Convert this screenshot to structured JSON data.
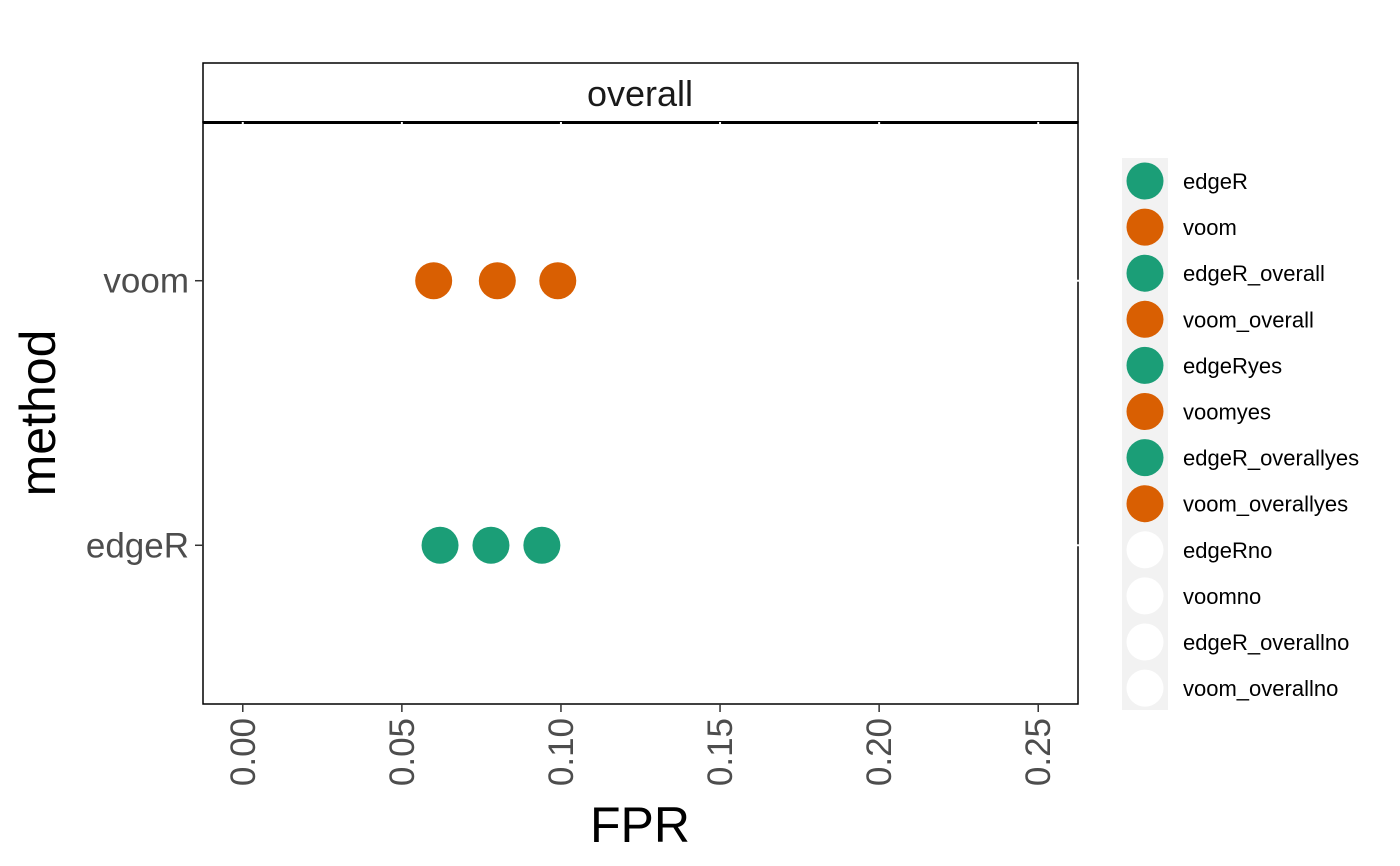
{
  "chart_data": {
    "type": "scatter",
    "facet_title": "overall",
    "xlabel": "FPR",
    "ylabel": "method",
    "xlim": [
      -0.0125,
      0.2625
    ],
    "x_ticks": [
      "0.00",
      "0.05",
      "0.10",
      "0.15",
      "0.20",
      "0.25"
    ],
    "x_tick_values": [
      0,
      0.05,
      0.1,
      0.15,
      0.2,
      0.25
    ],
    "categories": [
      "edgeR",
      "voom"
    ],
    "series": [
      {
        "name": "edgeR",
        "category": "edgeR",
        "color": "#1b9e77",
        "x": [
          0.062,
          0.078,
          0.094
        ]
      },
      {
        "name": "voom",
        "category": "voom",
        "color": "#d95f02",
        "x": [
          0.06,
          0.08,
          0.099
        ]
      }
    ],
    "legend": {
      "position": "right",
      "items": [
        {
          "label": "edgeR",
          "color": "#1b9e77"
        },
        {
          "label": "voom",
          "color": "#d95f02"
        },
        {
          "label": "edgeR_overall",
          "color": "#1b9e77"
        },
        {
          "label": "voom_overall",
          "color": "#d95f02"
        },
        {
          "label": "edgeRyes",
          "color": "#1b9e77"
        },
        {
          "label": "voomyes",
          "color": "#d95f02"
        },
        {
          "label": "edgeR_overallyes",
          "color": "#1b9e77"
        },
        {
          "label": "voom_overallyes",
          "color": "#d95f02"
        },
        {
          "label": "edgeRno",
          "color": "#ffffff"
        },
        {
          "label": "voomno",
          "color": "#ffffff"
        },
        {
          "label": "edgeR_overallno",
          "color": "#ffffff"
        },
        {
          "label": "voom_overallno",
          "color": "#ffffff"
        }
      ]
    },
    "grid": false
  }
}
